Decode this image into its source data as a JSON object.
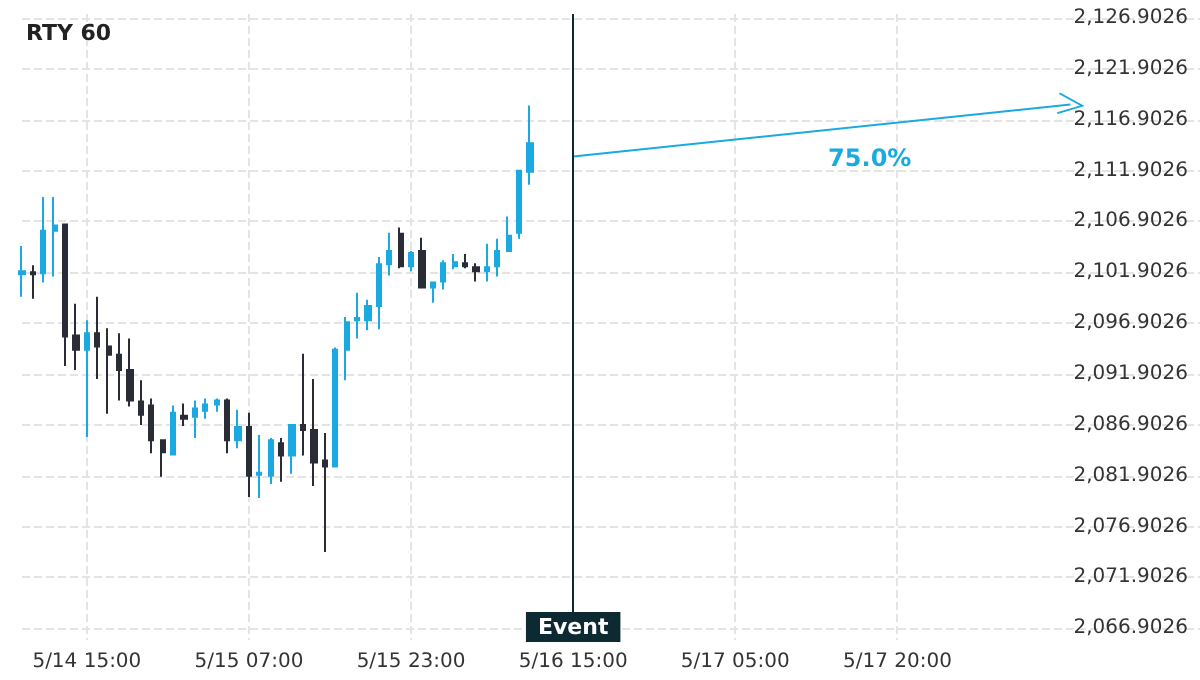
{
  "chart_data": {
    "type": "candlestick",
    "title": "RTY 60",
    "categories": [
      null,
      null,
      null,
      null,
      null,
      null,
      "5/14 15:00",
      null,
      null,
      null,
      null,
      null,
      null,
      null,
      null,
      null,
      null,
      null,
      null,
      null,
      null,
      "5/15 07:00",
      null,
      null,
      null,
      null,
      null,
      null,
      null,
      null,
      null,
      null,
      null,
      null,
      null,
      null,
      "5/15 23:00",
      null,
      null,
      null,
      null,
      null,
      null,
      null,
      null,
      null,
      null,
      null,
      null,
      null,
      null,
      "5/16 15:00",
      null,
      null,
      null,
      null,
      null,
      null,
      null,
      null,
      null,
      null,
      null,
      null,
      null,
      null,
      "5/17 05:00",
      null,
      null,
      null,
      null,
      null,
      null,
      null,
      null,
      null,
      null,
      null,
      null,
      null,
      null,
      "5/17 20:00",
      null,
      null,
      null,
      null,
      null,
      null,
      null,
      null,
      null,
      null,
      null,
      null,
      null,
      null,
      null,
      null,
      null,
      null,
      null,
      null,
      null,
      null,
      null,
      null,
      null,
      null,
      null,
      null
    ],
    "ohlc": [
      [
        2101.7,
        2104.5,
        2099.5,
        2102.0
      ],
      [
        2101.9,
        2102.6,
        2099.3,
        2101.7
      ],
      [
        2101.8,
        2109.3,
        2100.9,
        2106.0
      ],
      [
        2106.0,
        2109.3,
        2101.5,
        2106.5
      ],
      [
        2106.6,
        2106.7,
        2092.7,
        2095.6
      ],
      [
        2095.7,
        2098.8,
        2092.3,
        2094.3
      ],
      [
        2094.3,
        2097.2,
        2085.7,
        2095.9
      ],
      [
        2095.9,
        2099.5,
        2091.4,
        2094.6
      ],
      [
        2094.6,
        2096.4,
        2088.0,
        2093.8
      ],
      [
        2093.8,
        2095.9,
        2089.3,
        2092.3
      ],
      [
        2092.3,
        2095.4,
        2088.7,
        2089.3
      ],
      [
        2089.2,
        2091.3,
        2086.9,
        2087.9
      ],
      [
        2088.8,
        2089.5,
        2084.1,
        2085.4
      ],
      [
        2085.4,
        2085.4,
        2081.8,
        2084.2
      ],
      [
        2084.0,
        2088.8,
        2083.9,
        2088.1
      ],
      [
        2087.8,
        2089.0,
        2086.8,
        2087.5
      ],
      [
        2087.7,
        2089.3,
        2085.6,
        2088.5
      ],
      [
        2088.3,
        2089.5,
        2087.5,
        2088.9
      ],
      [
        2088.9,
        2089.5,
        2088.2,
        2089.3
      ],
      [
        2089.3,
        2089.5,
        2084.1,
        2085.4
      ],
      [
        2085.4,
        2088.4,
        2084.6,
        2086.7
      ],
      [
        2086.7,
        2088.1,
        2079.8,
        2081.9
      ],
      [
        2082.0,
        2085.9,
        2079.7,
        2082.2
      ],
      [
        2081.9,
        2085.6,
        2081.1,
        2085.4
      ],
      [
        2085.1,
        2085.6,
        2081.3,
        2083.9
      ],
      [
        2083.9,
        2086.9,
        2082.1,
        2086.9
      ],
      [
        2086.9,
        2093.9,
        2083.9,
        2086.4
      ],
      [
        2086.4,
        2091.4,
        2080.9,
        2083.2
      ],
      [
        2083.4,
        2086.1,
        2074.4,
        2082.8
      ],
      [
        2082.8,
        2094.5,
        2082.7,
        2094.3
      ],
      [
        2094.3,
        2097.5,
        2091.3,
        2097.0
      ],
      [
        2097.2,
        2099.9,
        2095.4,
        2097.4
      ],
      [
        2097.2,
        2099.2,
        2096.2,
        2098.6
      ],
      [
        2098.6,
        2103.4,
        2096.3,
        2102.7
      ],
      [
        2102.7,
        2105.8,
        2101.6,
        2104.0
      ],
      [
        2105.7,
        2106.3,
        2102.3,
        2102.5
      ],
      [
        2102.5,
        2104.0,
        2102.0,
        2103.8
      ],
      [
        2104.0,
        2105.3,
        2100.4,
        2100.4
      ],
      [
        2100.4,
        2100.9,
        2098.9,
        2100.9
      ],
      [
        2101.0,
        2103.1,
        2100.2,
        2102.8
      ],
      [
        2102.5,
        2103.7,
        2102.2,
        2102.9
      ],
      [
        2102.8,
        2103.7,
        2102.3,
        2102.5
      ],
      [
        2102.4,
        2102.8,
        2101.0,
        2102.0
      ],
      [
        2102.0,
        2104.7,
        2101.0,
        2102.4
      ],
      [
        2102.5,
        2105.2,
        2101.5,
        2104.0
      ],
      [
        2104.0,
        2107.4,
        2104.0,
        2105.5
      ],
      [
        2105.8,
        2111.9,
        2105.2,
        2111.9
      ],
      [
        2111.8,
        2118.3,
        2110.5,
        2114.6
      ],
      null,
      null,
      null,
      null,
      null,
      null,
      null,
      null,
      null,
      null,
      null,
      null,
      null,
      null,
      null,
      null,
      null,
      null,
      null,
      null,
      null,
      null,
      null,
      null,
      null,
      null,
      null,
      null,
      null,
      null,
      null,
      null,
      null,
      null,
      null,
      null,
      null,
      null,
      null,
      null,
      null,
      null,
      null,
      null,
      null,
      null,
      null,
      null,
      null,
      null,
      null,
      null,
      null,
      null,
      null,
      null,
      null,
      null,
      null,
      null,
      null,
      null
    ],
    "colors": [
      "#1ba9e1",
      "#2a2d35",
      "#1ba9e1",
      "#1ba9e1",
      "#2a2d35",
      "#2a2d35",
      "#1ba9e1",
      "#2a2d35",
      "#2a2d35",
      "#2a2d35",
      "#2a2d35",
      "#2a2d35",
      "#2a2d35",
      "#2a2d35",
      "#1ba9e1",
      "#2a2d35",
      "#1ba9e1",
      "#1ba9e1",
      "#1ba9e1",
      "#2a2d35",
      "#1ba9e1",
      "#2a2d35",
      "#1ba9e1",
      "#1ba9e1",
      "#2a2d35",
      "#1ba9e1",
      "#2a2d35",
      "#2a2d35",
      "#2a2d35",
      "#1ba9e1",
      "#1ba9e1",
      "#1ba9e1",
      "#1ba9e1",
      "#1ba9e1",
      "#1ba9e1",
      "#2a2d35",
      "#1ba9e1",
      "#2a2d35",
      "#1ba9e1",
      "#1ba9e1",
      "#1ba9e1",
      "#2a2d35",
      "#2a2d35",
      "#1ba9e1",
      "#1ba9e1",
      "#1ba9e1",
      "#1ba9e1",
      "#1ba9e1",
      null,
      null,
      null,
      null,
      null,
      null,
      null,
      null,
      null,
      null,
      null,
      null,
      null,
      null,
      null,
      null,
      null,
      null,
      null,
      null,
      null,
      null,
      null,
      null,
      null,
      null,
      null,
      null,
      null,
      null,
      null,
      null,
      null,
      null,
      null,
      null,
      null,
      null,
      null,
      null,
      null,
      null,
      null,
      null,
      null,
      null,
      null,
      null,
      null,
      null,
      null,
      null,
      null,
      null,
      null,
      null,
      null,
      null,
      null,
      null,
      null,
      null
    ],
    "series": [
      {
        "type": "line",
        "color": "#1ba9e1",
        "values": [
          null,
          null,
          null,
          null,
          null,
          null,
          null,
          null,
          null,
          null,
          null,
          null,
          null,
          null,
          null,
          null,
          null,
          null,
          null,
          null,
          null,
          null,
          null,
          null,
          null,
          null,
          null,
          null,
          null,
          null,
          null,
          null,
          null,
          null,
          null,
          null,
          null,
          null,
          null,
          null,
          null,
          null,
          null,
          null,
          null,
          null,
          null,
          null,
          null,
          null,
          null,
          2113.3,
          null,
          null,
          null,
          null,
          null,
          null,
          null,
          null,
          null,
          null,
          null,
          null,
          null,
          null,
          null,
          null,
          null,
          null,
          null,
          null,
          null,
          null,
          null,
          null,
          null,
          null,
          null,
          null,
          null,
          null,
          null,
          null,
          null,
          null,
          null,
          null,
          null,
          null,
          null,
          null,
          null,
          null,
          null,
          null,
          null,
          2118.4,
          null,
          null,
          null,
          null,
          null,
          null,
          null,
          null,
          null,
          null,
          null,
          null
        ]
      }
    ],
    "ylim": [
      2065.75,
      2127.3
    ],
    "yticks": [
      {
        "value": 2066.9026,
        "label": "2,066.9026"
      },
      {
        "value": 2071.9026,
        "label": "2,071.9026"
      },
      {
        "value": 2076.9026,
        "label": "2,076.9026"
      },
      {
        "value": 2081.9026,
        "label": "2,081.9026"
      },
      {
        "value": 2086.9026,
        "label": "2,086.9026"
      },
      {
        "value": 2091.9026,
        "label": "2,091.9026"
      },
      {
        "value": 2096.9026,
        "label": "2,096.9026"
      },
      {
        "value": 2101.9026,
        "label": "2,101.9026"
      },
      {
        "value": 2106.9026,
        "label": "2,106.9026"
      },
      {
        "value": 2111.9026,
        "label": "2,111.9026"
      },
      {
        "value": 2116.9026,
        "label": "2,116.9026"
      },
      {
        "value": 2121.9026,
        "label": "2,121.9026"
      },
      {
        "value": 2126.9026,
        "label": "2,126.9026"
      }
    ],
    "ref_lines": [
      {
        "axis": "x",
        "value": "5/16 15:00",
        "label": "Event",
        "color": "#0d2a33"
      }
    ],
    "annotations": [
      "75.0%"
    ],
    "grid": true
  }
}
